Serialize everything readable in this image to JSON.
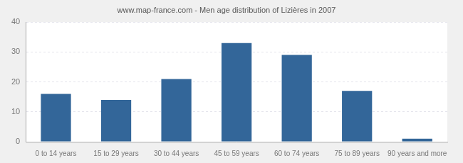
{
  "chart_data": {
    "type": "bar",
    "title": "www.map-france.com - Men age distribution of Lizières in 2007",
    "categories": [
      "0 to 14 years",
      "15 to 29 years",
      "30 to 44 years",
      "45 to 59 years",
      "60 to 74 years",
      "75 to 89 years",
      "90 years and more"
    ],
    "values": [
      16,
      14,
      21,
      33,
      29,
      17,
      1
    ],
    "color": "#336699",
    "ylim": [
      0,
      40
    ],
    "yticks": [
      0,
      10,
      20,
      30,
      40
    ],
    "grid": true
  }
}
